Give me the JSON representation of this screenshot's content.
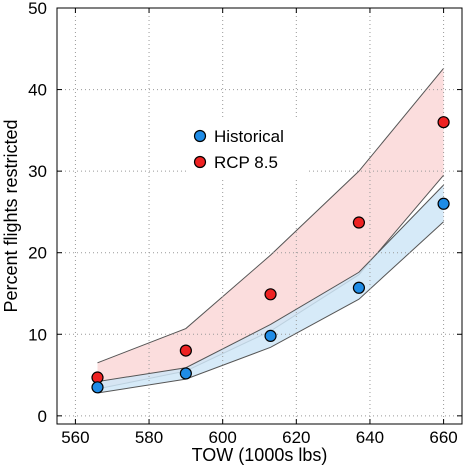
{
  "chart_data": {
    "type": "scatter",
    "title": "",
    "xlabel": "TOW (1000s lbs)",
    "ylabel": "Percent flights restricted",
    "xlim": [
      555,
      665
    ],
    "ylim": [
      -1,
      50
    ],
    "x_ticks": [
      560,
      580,
      600,
      620,
      640,
      660
    ],
    "y_ticks": [
      0,
      10,
      20,
      30,
      40,
      50
    ],
    "grid": true,
    "grid_style": "dotted",
    "legend_position": "center",
    "x": [
      566,
      590,
      613,
      637,
      660
    ],
    "series": [
      {
        "name": "Historical",
        "color": "#1f8ce6",
        "band_color": "#cfe6f7",
        "values": [
          3.5,
          5.2,
          9.8,
          15.7,
          26.0
        ],
        "band_lower": [
          2.8,
          4.5,
          8.4,
          14.3,
          23.8
        ],
        "band_upper": [
          4.2,
          5.9,
          11.2,
          17.6,
          28.3
        ]
      },
      {
        "name": "RCP 8.5",
        "color": "#ee2222",
        "band_color": "#fbdddd",
        "values": [
          4.7,
          8.0,
          14.9,
          23.7,
          36.0
        ],
        "band_lower": [
          3.3,
          5.5,
          10.4,
          17.3,
          29.5
        ],
        "band_upper": [
          6.5,
          10.7,
          19.7,
          30.0,
          42.6
        ]
      }
    ]
  }
}
